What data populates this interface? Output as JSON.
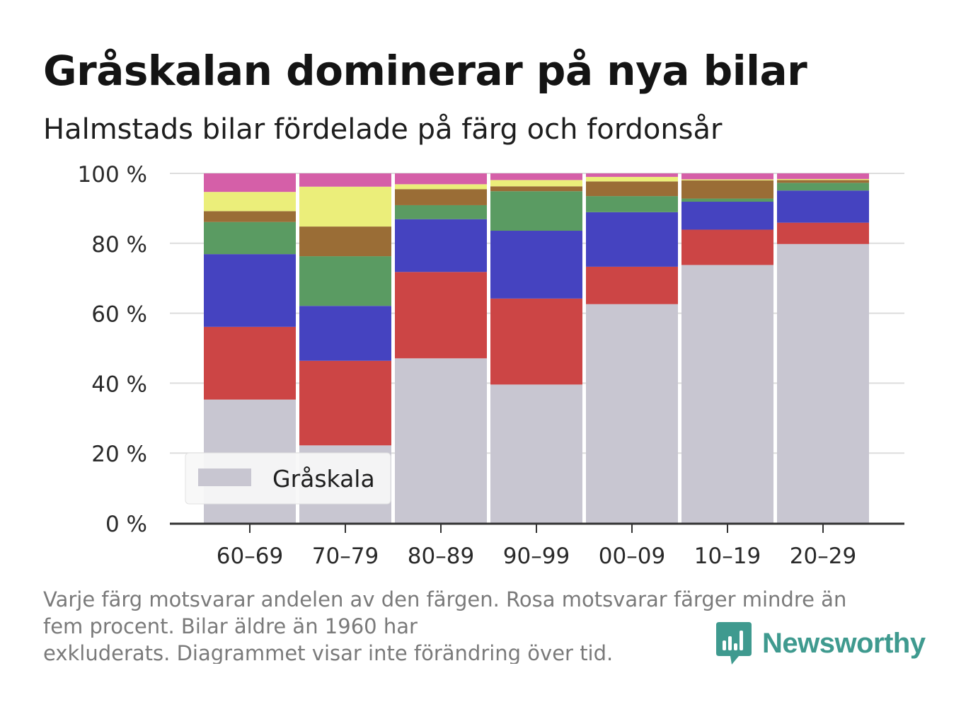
{
  "title": "Gråskalan dominerar på nya bilar",
  "subtitle": "Halmstads bilar fördelade på färg och fordonsår",
  "footnote": {
    "line1": "Varje färg motsvarar andelen av den färgen. Rosa motsvarar färger mindre än",
    "line2": "fem procent. Bilar äldre än 1960 har",
    "line3": "exkluderats. Diagrammet visar inte förändring över tid."
  },
  "brand": {
    "name": "Newsworthy",
    "icon": "newsworthy-logo-icon",
    "color": "#3f9a8f"
  },
  "legend": {
    "label": "Gråskala",
    "color": "#c8c6d1"
  },
  "chart_data": {
    "type": "bar",
    "stacked": true,
    "categories": [
      "60–69",
      "70–79",
      "80–89",
      "90–99",
      "00–09",
      "10–19",
      "20–29"
    ],
    "ylim": [
      0,
      100
    ],
    "yticks": [
      0,
      20,
      40,
      60,
      80,
      100
    ],
    "ytick_labels": [
      "0 %",
      "20 %",
      "40 %",
      "60 %",
      "80 %",
      "100 %"
    ],
    "grid": true,
    "legend_position": "bottom-left",
    "series": [
      {
        "name": "Gråskala",
        "color": "#c8c6d1",
        "values": [
          35.3,
          22.2,
          47.1,
          39.6,
          62.6,
          73.8,
          79.8
        ]
      },
      {
        "color": "#cc4545",
        "values": [
          20.8,
          24.2,
          24.7,
          24.6,
          10.7,
          10.1,
          6.1
        ]
      },
      {
        "color": "#4543c0",
        "values": [
          20.8,
          15.7,
          15.1,
          19.4,
          15.6,
          8.0,
          9.2
        ]
      },
      {
        "color": "#5a9b62",
        "values": [
          9.2,
          14.2,
          4.0,
          11.3,
          4.6,
          0.9,
          2.2
        ]
      },
      {
        "color": "#9a6d36",
        "values": [
          3.1,
          8.5,
          4.6,
          1.4,
          4.2,
          5.2,
          0.8
        ]
      },
      {
        "color": "#ebee7a",
        "values": [
          5.5,
          11.4,
          1.4,
          1.8,
          1.3,
          0.3,
          0.3
        ]
      },
      {
        "color": "#d55fa8",
        "values": [
          5.3,
          3.8,
          3.1,
          1.9,
          1.0,
          1.7,
          1.6
        ]
      }
    ]
  }
}
